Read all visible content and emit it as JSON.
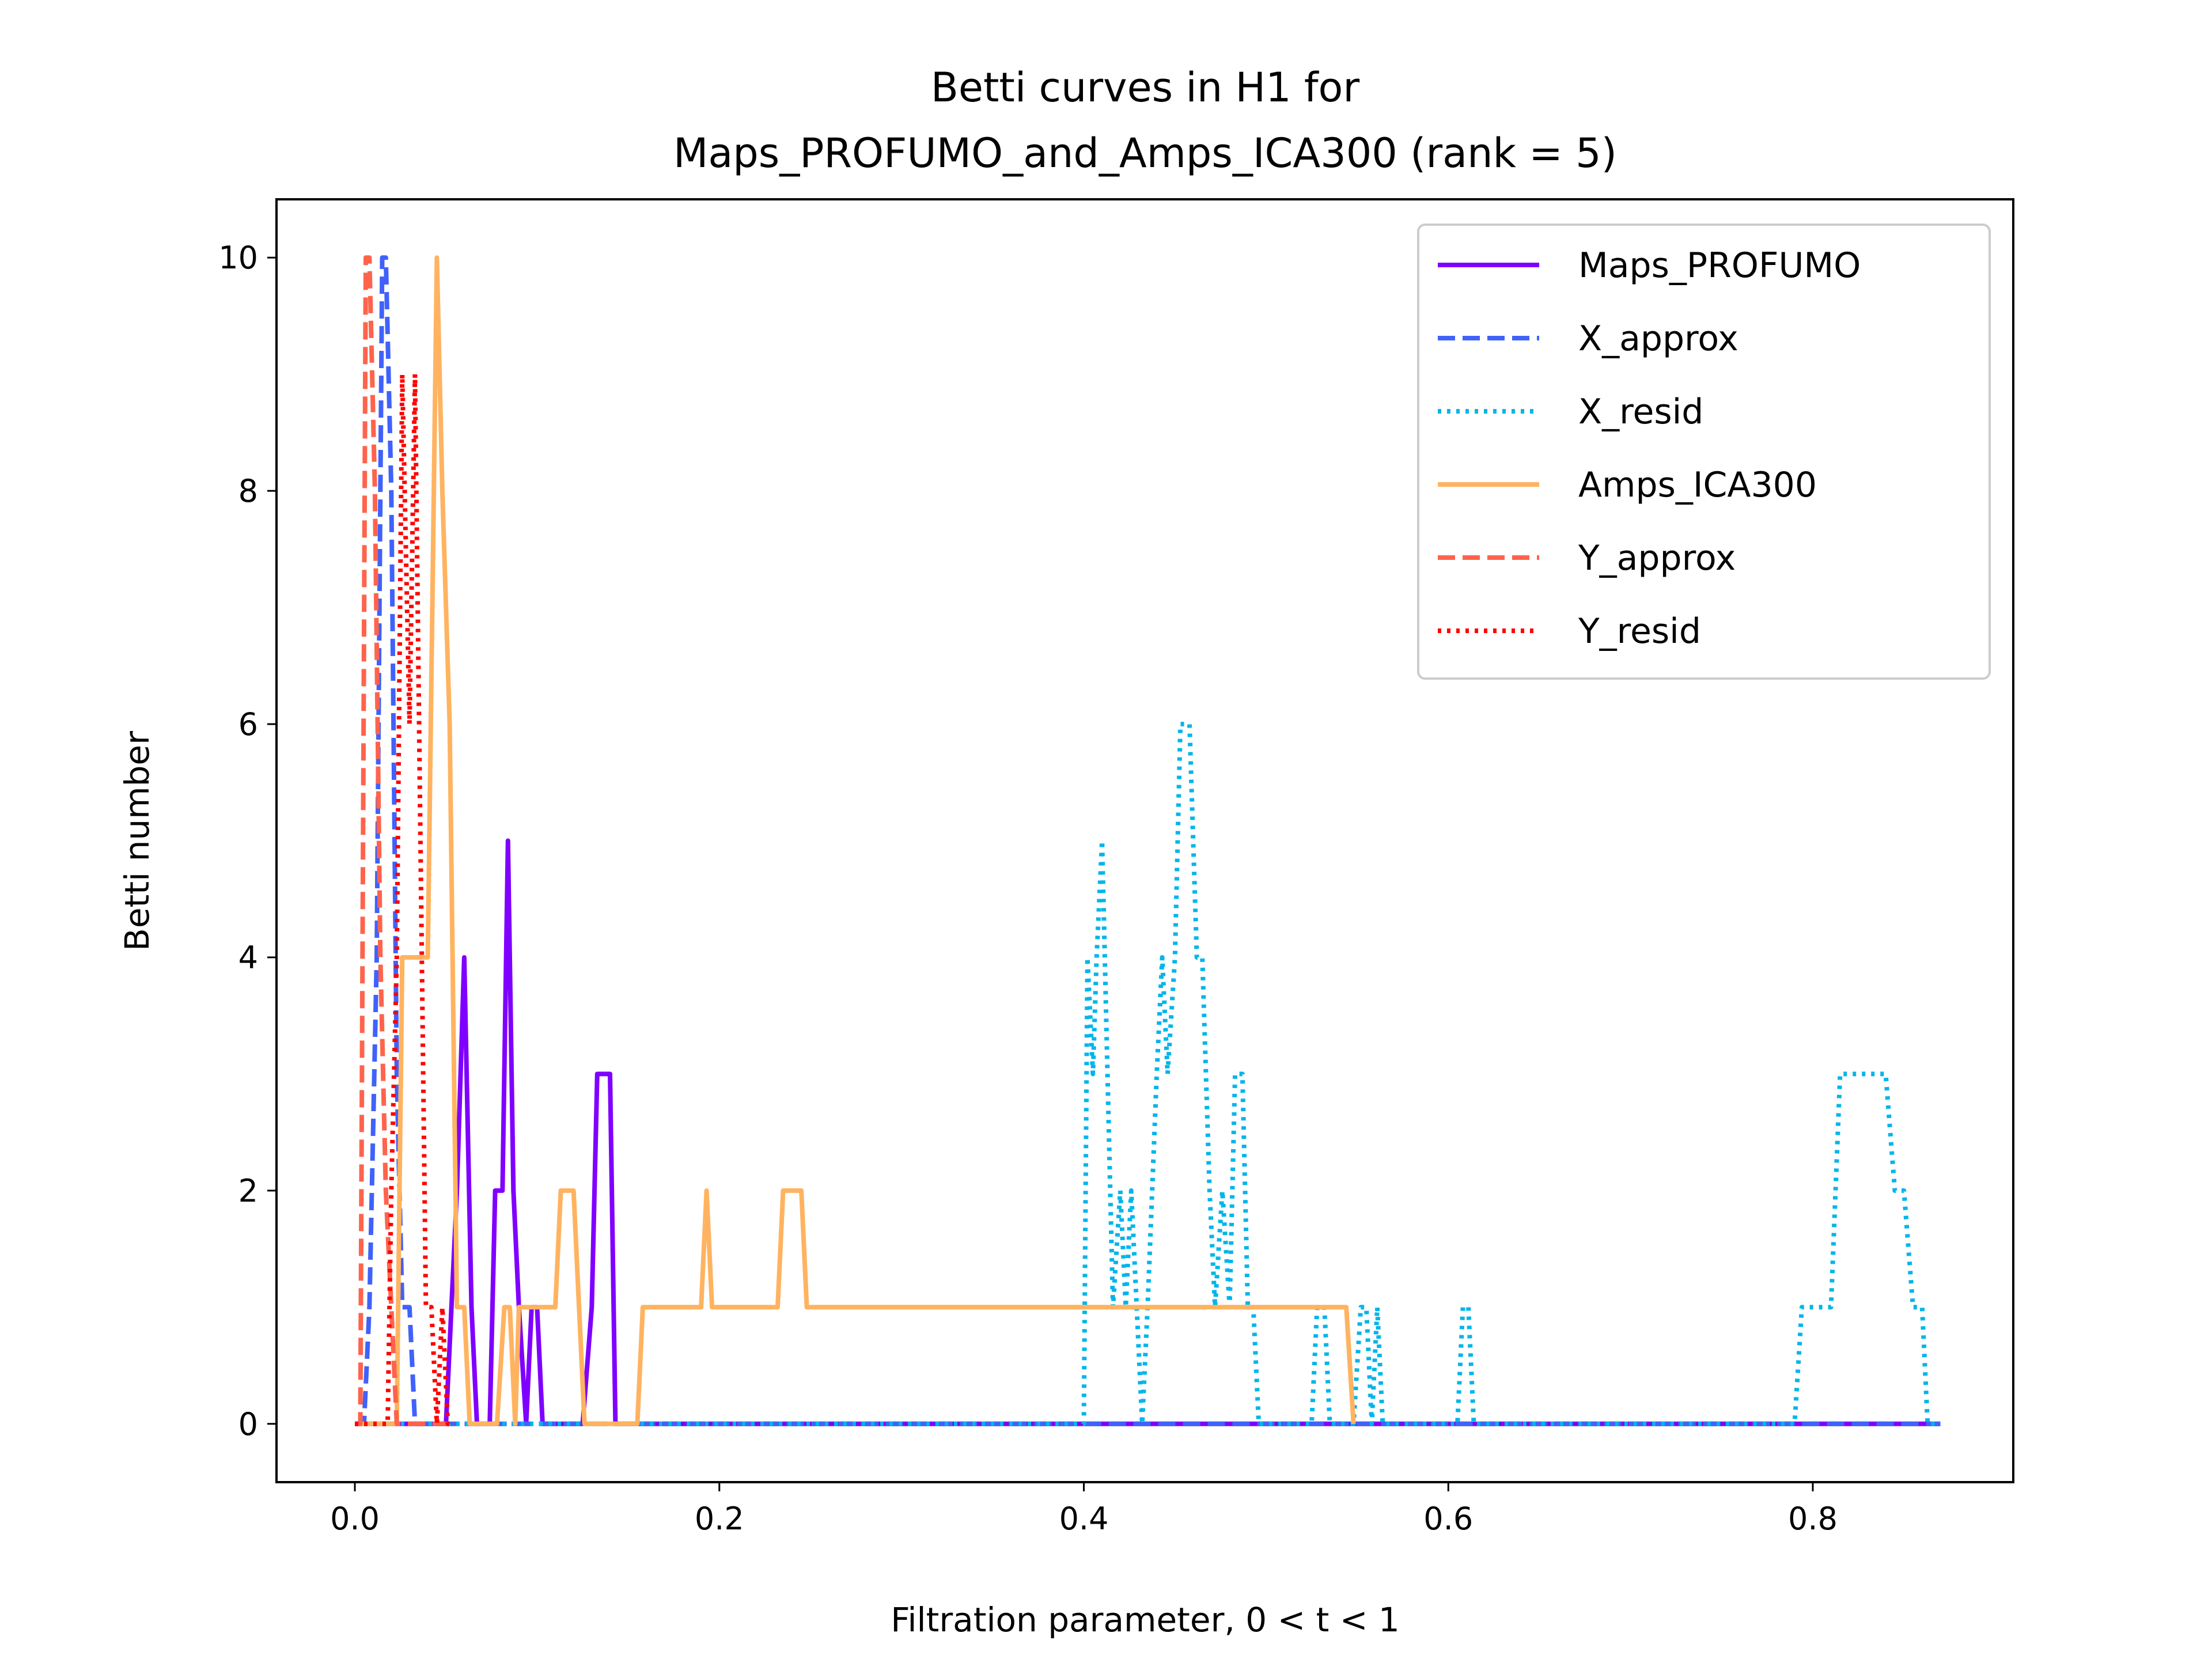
{
  "chart_data": {
    "type": "line",
    "title_lines": [
      "Betti curves in H1 for",
      "Maps_PROFUMO_and_Amps_ICA300 (rank = 5)"
    ],
    "xlabel": "Filtration parameter, 0 < t < 1",
    "ylabel": "Betti number",
    "xlim": [
      -0.043,
      0.91
    ],
    "ylim": [
      -0.5,
      10.5
    ],
    "xticks": [
      0.0,
      0.2,
      0.4,
      0.6,
      0.8
    ],
    "xtick_labels": [
      "0.0",
      "0.2",
      "0.4",
      "0.6",
      "0.8"
    ],
    "yticks": [
      0,
      2,
      4,
      6,
      8,
      10
    ],
    "ytick_labels": [
      "0",
      "2",
      "4",
      "6",
      "8",
      "10"
    ],
    "grid": false,
    "legend_position": "top-right",
    "series": [
      {
        "name": "Maps_PROFUMO",
        "color": "#7f00ff",
        "style": "solid",
        "points": [
          [
            0,
            0
          ],
          [
            0.05,
            0
          ],
          [
            0.053,
            1
          ],
          [
            0.056,
            2
          ],
          [
            0.06,
            4
          ],
          [
            0.064,
            1
          ],
          [
            0.067,
            0
          ],
          [
            0.074,
            0
          ],
          [
            0.077,
            2
          ],
          [
            0.081,
            2
          ],
          [
            0.084,
            5
          ],
          [
            0.087,
            2
          ],
          [
            0.09,
            1
          ],
          [
            0.094,
            0
          ],
          [
            0.097,
            1
          ],
          [
            0.1,
            1
          ],
          [
            0.103,
            0
          ],
          [
            0.125,
            0
          ],
          [
            0.13,
            1
          ],
          [
            0.133,
            3
          ],
          [
            0.14,
            3
          ],
          [
            0.143,
            0
          ],
          [
            0.87,
            0
          ]
        ]
      },
      {
        "name": "X_approx",
        "color": "#4062fa",
        "style": "dashed",
        "points": [
          [
            0,
            0
          ],
          [
            0.005,
            0
          ],
          [
            0.008,
            1
          ],
          [
            0.012,
            4
          ],
          [
            0.015,
            10
          ],
          [
            0.017,
            10
          ],
          [
            0.02,
            8
          ],
          [
            0.023,
            3
          ],
          [
            0.026,
            1
          ],
          [
            0.03,
            1
          ],
          [
            0.033,
            0
          ],
          [
            0.87,
            0
          ]
        ]
      },
      {
        "name": "X_resid",
        "color": "#00b5eb",
        "style": "dotted",
        "points": [
          [
            0,
            0
          ],
          [
            0.4,
            0
          ],
          [
            0.402,
            4
          ],
          [
            0.405,
            3
          ],
          [
            0.407,
            4
          ],
          [
            0.41,
            5
          ],
          [
            0.413,
            3
          ],
          [
            0.416,
            1
          ],
          [
            0.42,
            2
          ],
          [
            0.423,
            1
          ],
          [
            0.426,
            2
          ],
          [
            0.429,
            1
          ],
          [
            0.432,
            0
          ],
          [
            0.435,
            1
          ],
          [
            0.44,
            3
          ],
          [
            0.443,
            4
          ],
          [
            0.446,
            3
          ],
          [
            0.45,
            4
          ],
          [
            0.453,
            6
          ],
          [
            0.458,
            6
          ],
          [
            0.462,
            4
          ],
          [
            0.465,
            4
          ],
          [
            0.469,
            2
          ],
          [
            0.472,
            1
          ],
          [
            0.476,
            2
          ],
          [
            0.48,
            1
          ],
          [
            0.483,
            3
          ],
          [
            0.487,
            3
          ],
          [
            0.49,
            1
          ],
          [
            0.493,
            1
          ],
          [
            0.496,
            0
          ],
          [
            0.525,
            0
          ],
          [
            0.528,
            1
          ],
          [
            0.532,
            1
          ],
          [
            0.535,
            0
          ],
          [
            0.548,
            0
          ],
          [
            0.552,
            1
          ],
          [
            0.555,
            1
          ],
          [
            0.558,
            0
          ],
          [
            0.561,
            1
          ],
          [
            0.564,
            0
          ],
          [
            0.605,
            0
          ],
          [
            0.608,
            1
          ],
          [
            0.611,
            1
          ],
          [
            0.614,
            0
          ],
          [
            0.79,
            0
          ],
          [
            0.794,
            1
          ],
          [
            0.81,
            1
          ],
          [
            0.815,
            3
          ],
          [
            0.84,
            3
          ],
          [
            0.845,
            2
          ],
          [
            0.85,
            2
          ],
          [
            0.855,
            1
          ],
          [
            0.86,
            1
          ],
          [
            0.863,
            0
          ],
          [
            0.87,
            0
          ]
        ]
      },
      {
        "name": "Amps_ICA300",
        "color": "#ffb360",
        "style": "solid",
        "points": [
          [
            0,
            0
          ],
          [
            0.023,
            0
          ],
          [
            0.026,
            4
          ],
          [
            0.04,
            4
          ],
          [
            0.045,
            10
          ],
          [
            0.048,
            8
          ],
          [
            0.052,
            6
          ],
          [
            0.056,
            1
          ],
          [
            0.06,
            1
          ],
          [
            0.063,
            0
          ],
          [
            0.078,
            0
          ],
          [
            0.082,
            1
          ],
          [
            0.085,
            1
          ],
          [
            0.088,
            0
          ],
          [
            0.09,
            1
          ],
          [
            0.11,
            1
          ],
          [
            0.113,
            2
          ],
          [
            0.12,
            2
          ],
          [
            0.123,
            1
          ],
          [
            0.126,
            0
          ],
          [
            0.155,
            0
          ],
          [
            0.158,
            1
          ],
          [
            0.19,
            1
          ],
          [
            0.193,
            2
          ],
          [
            0.196,
            1
          ],
          [
            0.232,
            1
          ],
          [
            0.235,
            2
          ],
          [
            0.245,
            2
          ],
          [
            0.248,
            1
          ],
          [
            0.544,
            1
          ],
          [
            0.548,
            0
          ]
        ]
      },
      {
        "name": "Y_approx",
        "color": "#ff634c",
        "style": "dashed",
        "points": [
          [
            0,
            0
          ],
          [
            0.003,
            0
          ],
          [
            0.006,
            10
          ],
          [
            0.008,
            10
          ],
          [
            0.011,
            8
          ],
          [
            0.014,
            4
          ],
          [
            0.017,
            2
          ],
          [
            0.02,
            1
          ],
          [
            0.023,
            0
          ],
          [
            0.055,
            0
          ]
        ]
      },
      {
        "name": "Y_resid",
        "color": "#ff0000",
        "style": "dotted",
        "points": [
          [
            0,
            0
          ],
          [
            0.018,
            0
          ],
          [
            0.02,
            2
          ],
          [
            0.023,
            4
          ],
          [
            0.026,
            9
          ],
          [
            0.03,
            6
          ],
          [
            0.033,
            9
          ],
          [
            0.036,
            5
          ],
          [
            0.039,
            1
          ],
          [
            0.042,
            1
          ],
          [
            0.045,
            0
          ],
          [
            0.048,
            1
          ],
          [
            0.051,
            0
          ],
          [
            0.055,
            0
          ]
        ]
      }
    ]
  }
}
